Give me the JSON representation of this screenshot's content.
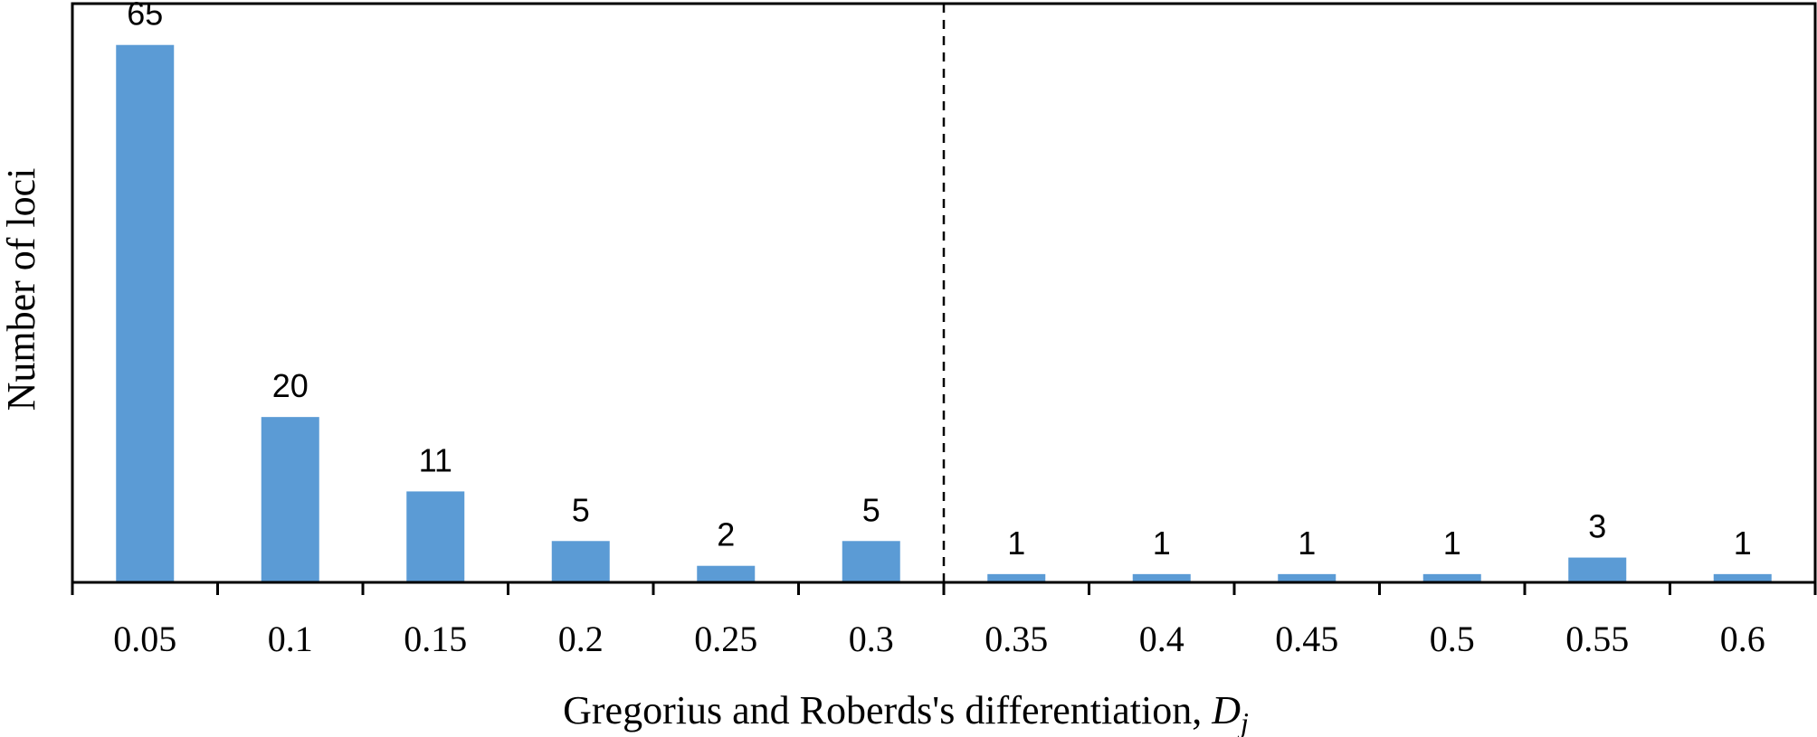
{
  "chart_data": {
    "type": "bar",
    "categories": [
      "0.05",
      "0.1",
      "0.15",
      "0.2",
      "0.25",
      "0.3",
      "0.35",
      "0.4",
      "0.45",
      "0.5",
      "0.55",
      "0.6"
    ],
    "values": [
      65,
      20,
      11,
      5,
      2,
      5,
      1,
      1,
      1,
      1,
      3,
      1
    ],
    "data_labels": [
      "65",
      "20",
      "11",
      "5",
      "2",
      "5",
      "1",
      "1",
      "1",
      "1",
      "3",
      "1"
    ],
    "xlabel": "Gregorius and Roberds's differentiation, ",
    "xlabel_symbol": "D",
    "xlabel_subscript": "j",
    "ylabel": "Number of loci",
    "ylim": [
      0,
      70
    ],
    "reference_line": {
      "style": "dashed",
      "position": "between 0.3 and 0.35"
    },
    "bar_color": "#5b9bd5",
    "grid": false,
    "legend": "none"
  }
}
